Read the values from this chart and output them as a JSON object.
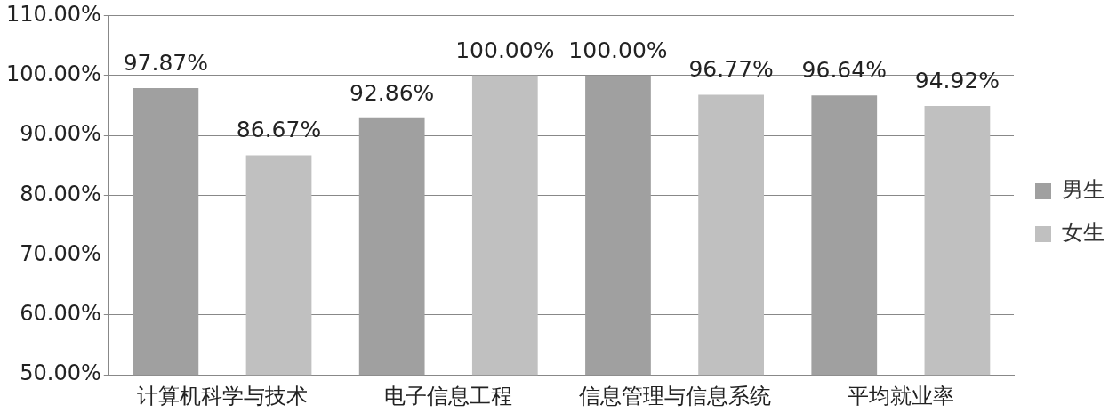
{
  "chart_data": {
    "type": "bar",
    "categories": [
      "计算机科学与技术",
      "电子信息工程",
      "信息管理与信息系统",
      "平均就业率"
    ],
    "series": [
      {
        "name": "男生",
        "color": "#a0a0a0",
        "values": [
          97.87,
          92.86,
          100,
          96.64
        ],
        "value_labels": [
          "97.87%",
          "92.86%",
          "100.00%",
          "96.64%"
        ]
      },
      {
        "name": "女生",
        "color": "#c0c0c0",
        "values": [
          86.67,
          100,
          96.77,
          94.92
        ],
        "value_labels": [
          "86.67%",
          "100.00%",
          "96.77%",
          "94.92%"
        ]
      }
    ],
    "ylim": [
      50,
      110
    ],
    "yticks": [
      {
        "value": 50,
        "label": "50.00%"
      },
      {
        "value": 60,
        "label": "60.00%"
      },
      {
        "value": 70,
        "label": "70.00%"
      },
      {
        "value": 80,
        "label": "80.00%"
      },
      {
        "value": 90,
        "label": "90.00%"
      },
      {
        "value": 100,
        "label": "100.00%"
      },
      {
        "value": 110,
        "label": "110.00%"
      }
    ],
    "grid": "y",
    "legend": "right"
  }
}
